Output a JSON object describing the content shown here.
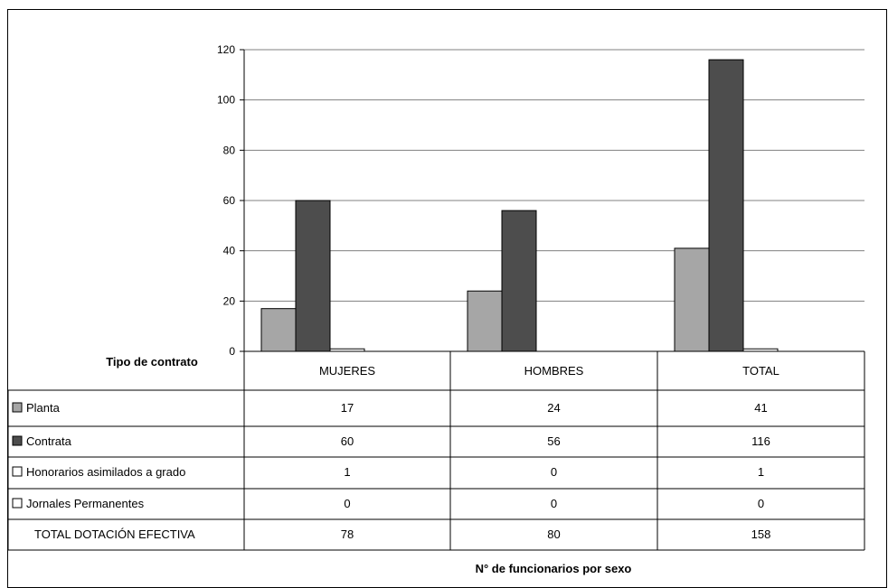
{
  "chart_data": {
    "type": "bar",
    "categories": [
      "MUJERES",
      "HOMBRES",
      "TOTAL"
    ],
    "series": [
      {
        "name": "Planta",
        "color": "#a6a6a6",
        "values": [
          17,
          24,
          41
        ]
      },
      {
        "name": "Contrata",
        "color": "#4d4d4d",
        "values": [
          60,
          56,
          116
        ]
      },
      {
        "name": "Honorarios asimilados a grado",
        "color": "#ffffff",
        "values": [
          1,
          0,
          1
        ]
      },
      {
        "name": "Jornales Permanentes",
        "color": "#ffffff",
        "values": [
          0,
          0,
          0
        ]
      }
    ],
    "total_row": {
      "label": "TOTAL DOTACIÓN EFECTIVA",
      "values": [
        78,
        80,
        158
      ]
    },
    "table_header": "Tipo de contrato",
    "xlabel": "N° de funcionarios por sexo",
    "ylim": [
      0,
      120
    ],
    "yticks": [
      0,
      20,
      40,
      60,
      80,
      100,
      120
    ],
    "grid": true,
    "legend": "data-table"
  }
}
